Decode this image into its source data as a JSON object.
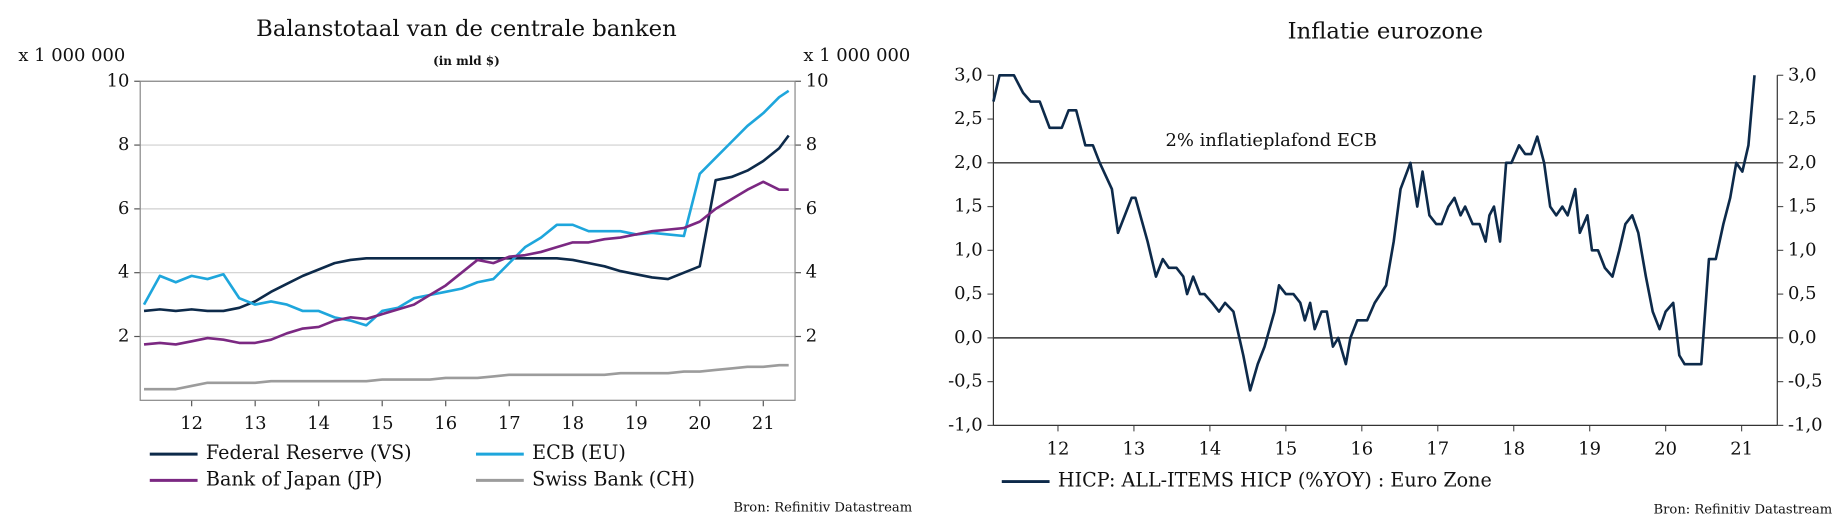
{
  "chart_data": [
    {
      "type": "line",
      "title": "Balanstotaal van de centrale banken",
      "subtitle": "(in mld $)",
      "y_unit_label": "x 1 000 000",
      "y2_unit_label": "x 1 000 000",
      "source": "Bron: Refinitiv Datastream",
      "grid": true,
      "x": [
        11.25,
        11.5,
        11.75,
        12,
        12.25,
        12.5,
        12.75,
        13,
        13.25,
        13.5,
        13.75,
        14,
        14.25,
        14.5,
        14.75,
        15,
        15.25,
        15.5,
        15.75,
        16,
        16.25,
        16.5,
        16.75,
        17,
        17.25,
        17.5,
        17.75,
        18,
        18.25,
        18.5,
        18.75,
        19,
        19.25,
        19.5,
        19.75,
        20,
        20.25,
        20.5,
        20.75,
        21,
        21.25,
        21.4
      ],
      "series": [
        {
          "name": "Federal Reserve (VS)",
          "color": "#0d2a4a",
          "values": [
            2.8,
            2.85,
            2.8,
            2.85,
            2.8,
            2.8,
            2.9,
            3.1,
            3.4,
            3.65,
            3.9,
            4.1,
            4.3,
            4.4,
            4.45,
            4.45,
            4.45,
            4.45,
            4.45,
            4.45,
            4.45,
            4.45,
            4.45,
            4.45,
            4.45,
            4.45,
            4.45,
            4.4,
            4.3,
            4.2,
            4.05,
            3.95,
            3.85,
            3.8,
            4.0,
            4.2,
            6.9,
            7.0,
            7.2,
            7.5,
            7.9,
            8.3
          ]
        },
        {
          "name": "ECB (EU)",
          "color": "#1ea6dc",
          "values": [
            3.0,
            3.9,
            3.7,
            3.9,
            3.8,
            3.95,
            3.2,
            3.0,
            3.1,
            3.0,
            2.8,
            2.8,
            2.6,
            2.5,
            2.35,
            2.8,
            2.9,
            3.2,
            3.3,
            3.4,
            3.5,
            3.7,
            3.8,
            4.3,
            4.8,
            5.1,
            5.5,
            5.5,
            5.3,
            5.3,
            5.3,
            5.2,
            5.25,
            5.2,
            5.15,
            7.1,
            7.6,
            8.1,
            8.6,
            9.0,
            9.5,
            9.7
          ]
        },
        {
          "name": "Bank of Japan (JP)",
          "color": "#7b2882",
          "values": [
            1.75,
            1.8,
            1.75,
            1.85,
            1.95,
            1.9,
            1.8,
            1.8,
            1.9,
            2.1,
            2.25,
            2.3,
            2.5,
            2.6,
            2.55,
            2.7,
            2.85,
            3.0,
            3.3,
            3.6,
            4.0,
            4.4,
            4.3,
            4.5,
            4.55,
            4.65,
            4.8,
            4.95,
            4.95,
            5.05,
            5.1,
            5.2,
            5.3,
            5.35,
            5.4,
            5.6,
            6.0,
            6.3,
            6.6,
            6.85,
            6.6,
            6.6
          ]
        },
        {
          "name": "Swiss Bank (CH)",
          "color": "#9c9c9c",
          "values": [
            0.35,
            0.35,
            0.35,
            0.45,
            0.55,
            0.55,
            0.55,
            0.55,
            0.6,
            0.6,
            0.6,
            0.6,
            0.6,
            0.6,
            0.6,
            0.65,
            0.65,
            0.65,
            0.65,
            0.7,
            0.7,
            0.7,
            0.75,
            0.8,
            0.8,
            0.8,
            0.8,
            0.8,
            0.8,
            0.8,
            0.85,
            0.85,
            0.85,
            0.85,
            0.9,
            0.9,
            0.95,
            1.0,
            1.05,
            1.05,
            1.1,
            1.1
          ]
        }
      ],
      "xlim": [
        11.19,
        21.5
      ],
      "xticks": [
        12,
        13,
        14,
        15,
        16,
        17,
        18,
        19,
        20,
        21
      ],
      "ylim": [
        0,
        10
      ],
      "yticks": [
        2,
        4,
        6,
        8,
        10
      ],
      "y2lim": [
        0,
        10
      ],
      "y2ticks": [
        2,
        4,
        6,
        8,
        10
      ]
    },
    {
      "type": "line",
      "title": "Inflatie eurozone",
      "annotation": "2% inflatieplafond ECB",
      "source": "Bron: Refinitiv Datastream",
      "hlines": [
        0,
        2
      ],
      "x": [
        11.15,
        11.23,
        11.42,
        11.54,
        11.64,
        11.76,
        11.89,
        12.05,
        12.14,
        12.24,
        12.36,
        12.46,
        12.55,
        12.71,
        12.79,
        12.97,
        13.02,
        13.18,
        13.29,
        13.38,
        13.46,
        13.56,
        13.65,
        13.7,
        13.78,
        13.87,
        13.93,
        14.03,
        14.12,
        14.2,
        14.31,
        14.44,
        14.53,
        14.63,
        14.72,
        14.85,
        14.91,
        15.0,
        15.1,
        15.19,
        15.25,
        15.32,
        15.38,
        15.47,
        15.54,
        15.62,
        15.69,
        15.79,
        15.85,
        15.94,
        16.07,
        16.17,
        16.32,
        16.42,
        16.51,
        16.64,
        16.73,
        16.8,
        16.89,
        16.98,
        17.05,
        17.14,
        17.22,
        17.3,
        17.36,
        17.46,
        17.55,
        17.63,
        17.68,
        17.74,
        17.82,
        17.9,
        17.97,
        18.07,
        18.15,
        18.23,
        18.31,
        18.4,
        18.48,
        18.56,
        18.64,
        18.71,
        18.81,
        18.87,
        18.97,
        19.03,
        19.11,
        19.2,
        19.3,
        19.39,
        19.47,
        19.56,
        19.64,
        19.74,
        19.83,
        19.92,
        20.0,
        20.1,
        20.18,
        20.25,
        20.38,
        20.47,
        20.57,
        20.66,
        20.76,
        20.85,
        20.93,
        21.01,
        21.09,
        21.17
      ],
      "series": [
        {
          "name": "HICP: ALL-ITEMS HICP (%YOY) : Euro Zone",
          "color": "#0d2a4a",
          "values": [
            2.7,
            3.0,
            3.0,
            2.8,
            2.7,
            2.7,
            2.4,
            2.4,
            2.6,
            2.6,
            2.2,
            2.2,
            2.0,
            1.7,
            1.2,
            1.6,
            1.6,
            1.1,
            0.7,
            0.9,
            0.8,
            0.8,
            0.7,
            0.5,
            0.7,
            0.5,
            0.5,
            0.4,
            0.3,
            0.4,
            0.3,
            -0.2,
            -0.6,
            -0.3,
            -0.1,
            0.3,
            0.6,
            0.5,
            0.5,
            0.4,
            0.2,
            0.4,
            0.1,
            0.3,
            0.3,
            -0.1,
            0.0,
            -0.3,
            0.0,
            0.2,
            0.2,
            0.4,
            0.6,
            1.1,
            1.7,
            2.0,
            1.5,
            1.9,
            1.4,
            1.3,
            1.3,
            1.5,
            1.6,
            1.4,
            1.5,
            1.3,
            1.3,
            1.1,
            1.4,
            1.5,
            1.1,
            2.0,
            2.0,
            2.2,
            2.1,
            2.1,
            2.3,
            2.0,
            1.5,
            1.4,
            1.5,
            1.4,
            1.7,
            1.2,
            1.4,
            1.0,
            1.0,
            0.8,
            0.7,
            1.0,
            1.3,
            1.4,
            1.2,
            0.7,
            0.3,
            0.1,
            0.3,
            0.4,
            -0.2,
            -0.3,
            -0.3,
            -0.3,
            0.9,
            0.9,
            1.3,
            1.6,
            2.0,
            1.9,
            2.2,
            3.0
          ]
        }
      ],
      "xlim": [
        11.15,
        21.47
      ],
      "xticks": [
        12,
        13,
        14,
        15,
        16,
        17,
        18,
        19,
        20,
        21
      ],
      "ylim": [
        -1,
        3
      ],
      "yticks": [
        {
          "value": -1,
          "label": "-1,0"
        },
        {
          "value": -0.5,
          "label": "-0,5"
        },
        {
          "value": 0,
          "label": "0,0"
        },
        {
          "value": 0.5,
          "label": "0,5"
        },
        {
          "value": 1,
          "label": "1,0"
        },
        {
          "value": 1.5,
          "label": "1,5"
        },
        {
          "value": 2,
          "label": "2,0"
        },
        {
          "value": 2.5,
          "label": "2,5"
        },
        {
          "value": 3,
          "label": "3,0"
        }
      ],
      "y2lim": [
        -1,
        3
      ],
      "y2ticks": [
        {
          "value": -1,
          "label": "-1,0"
        },
        {
          "value": -0.5,
          "label": "-0,5"
        },
        {
          "value": 0,
          "label": "0,0"
        },
        {
          "value": 0.5,
          "label": "0,5"
        },
        {
          "value": 1,
          "label": "1,0"
        },
        {
          "value": 1.5,
          "label": "1,5"
        },
        {
          "value": 2,
          "label": "2,0"
        },
        {
          "value": 2.5,
          "label": "2,5"
        },
        {
          "value": 3,
          "label": "3,0"
        }
      ]
    }
  ]
}
